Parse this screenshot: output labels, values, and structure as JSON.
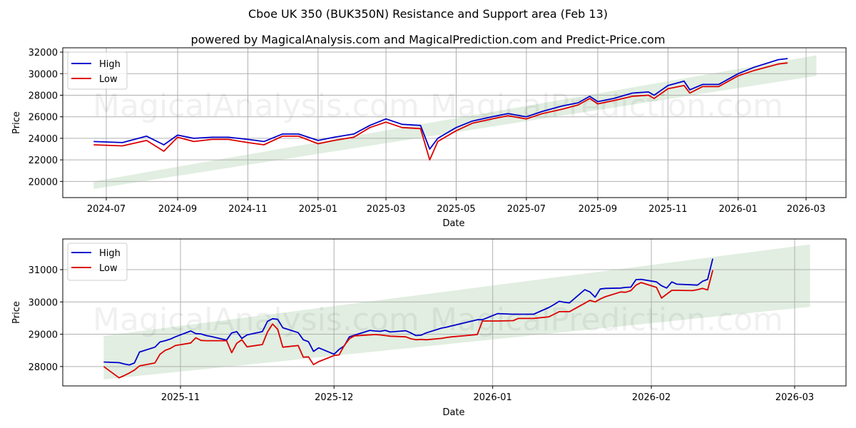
{
  "header": {
    "title": "Cboe UK 350 (BUK350N) Resistance and Support area (Feb 13)",
    "subtitle": "powered by MagicalAnalysis.com and MagicalPrediction.com and Predict-Price.com"
  },
  "watermarks": [
    "MagicalAnalysis.com",
    "MagicalPrediction.com"
  ],
  "colors": {
    "high": "#0000cc",
    "low": "#dd0000",
    "band": "#c8e0c8",
    "grid": "#b0b0b0"
  },
  "chart_data": [
    {
      "type": "line",
      "title": "Cboe UK 350 (BUK350N) Resistance and Support area (Feb 13)",
      "xlabel": "Date",
      "ylabel": "Price",
      "ylim": [
        18500,
        32400
      ],
      "yticks": [
        20000,
        22000,
        24000,
        26000,
        28000,
        30000,
        32000
      ],
      "xticks": [
        "2024-07",
        "2024-09",
        "2024-11",
        "2025-01",
        "2025-03",
        "2025-05",
        "2025-07",
        "2025-09",
        "2025-11",
        "2026-01",
        "2026-03"
      ],
      "grid": true,
      "legend": {
        "position": "upper left",
        "entries": [
          "High",
          "Low"
        ]
      },
      "band": {
        "label": "Resistance and Support area",
        "start": {
          "x": "2024-06-20",
          "low": 19300,
          "high": 20000
        },
        "end": {
          "x": "2026-03-10",
          "low": 29800,
          "high": 31700
        }
      },
      "x": [
        "2024-06-20",
        "2024-07-15",
        "2024-08-05",
        "2024-08-20",
        "2024-09-01",
        "2024-09-15",
        "2024-10-01",
        "2024-10-15",
        "2024-11-01",
        "2024-11-15",
        "2024-12-01",
        "2024-12-15",
        "2025-01-01",
        "2025-01-15",
        "2025-02-01",
        "2025-02-15",
        "2025-03-01",
        "2025-03-15",
        "2025-03-31",
        "2025-04-08",
        "2025-04-15",
        "2025-05-01",
        "2025-05-15",
        "2025-06-01",
        "2025-06-15",
        "2025-07-01",
        "2025-07-15",
        "2025-08-01",
        "2025-08-15",
        "2025-08-25",
        "2025-09-01",
        "2025-09-15",
        "2025-10-01",
        "2025-10-15",
        "2025-10-20",
        "2025-11-01",
        "2025-11-15",
        "2025-11-20",
        "2025-12-01",
        "2025-12-15",
        "2026-01-01",
        "2026-01-15",
        "2026-02-05",
        "2026-02-13"
      ],
      "series": [
        {
          "name": "High",
          "values": [
            23700,
            23600,
            24200,
            23400,
            24300,
            24000,
            24100,
            24100,
            23900,
            23700,
            24400,
            24400,
            23800,
            24100,
            24400,
            25200,
            25800,
            25300,
            25200,
            23000,
            24000,
            25000,
            25600,
            26000,
            26300,
            26000,
            26500,
            27000,
            27300,
            27900,
            27400,
            27700,
            28200,
            28300,
            28000,
            28900,
            29300,
            28500,
            29000,
            29000,
            30000,
            30600,
            31300,
            31400
          ]
        },
        {
          "name": "Low",
          "values": [
            23400,
            23300,
            23800,
            22800,
            24100,
            23700,
            23900,
            23900,
            23600,
            23400,
            24200,
            24200,
            23500,
            23800,
            24100,
            25000,
            25500,
            25000,
            24900,
            22000,
            23700,
            24700,
            25400,
            25800,
            26100,
            25800,
            26300,
            26700,
            27100,
            27700,
            27200,
            27500,
            27900,
            28000,
            27700,
            28600,
            28900,
            28200,
            28800,
            28800,
            29800,
            30300,
            30900,
            31000
          ]
        }
      ]
    },
    {
      "type": "line",
      "title": "",
      "xlabel": "Date",
      "ylabel": "Price",
      "ylim": [
        27400,
        31950
      ],
      "yticks": [
        28000,
        29000,
        30000,
        31000
      ],
      "xticks": [
        "2025-11",
        "2025-12",
        "2026-01",
        "2026-02",
        "2026-03"
      ],
      "grid": true,
      "legend": {
        "position": "upper left",
        "entries": [
          "High",
          "Low"
        ]
      },
      "band": {
        "label": "Resistance and Support area",
        "start": {
          "x": "2025-10-17",
          "low": 27600,
          "high": 28950
        },
        "end": {
          "x": "2026-03-04",
          "low": 29850,
          "high": 31780
        }
      },
      "x": [
        "2025-10-17",
        "2025-10-20",
        "2025-10-21",
        "2025-10-22",
        "2025-10-23",
        "2025-10-24",
        "2025-10-27",
        "2025-10-28",
        "2025-10-29",
        "2025-10-30",
        "2025-10-31",
        "2025-11-03",
        "2025-11-04",
        "2025-11-05",
        "2025-11-06",
        "2025-11-07",
        "2025-11-10",
        "2025-11-11",
        "2025-11-12",
        "2025-11-13",
        "2025-11-14",
        "2025-11-17",
        "2025-11-18",
        "2025-11-19",
        "2025-11-20",
        "2025-11-21",
        "2025-11-24",
        "2025-11-25",
        "2025-11-26",
        "2025-11-27",
        "2025-11-28",
        "2025-12-01",
        "2025-12-02",
        "2025-12-03",
        "2025-12-04",
        "2025-12-05",
        "2025-12-08",
        "2025-12-09",
        "2025-12-10",
        "2025-12-11",
        "2025-12-12",
        "2025-12-15",
        "2025-12-16",
        "2025-12-17",
        "2025-12-18",
        "2025-12-19",
        "2025-12-22",
        "2025-12-23",
        "2025-12-24",
        "2025-12-29",
        "2025-12-30",
        "2026-01-02",
        "2026-01-05",
        "2026-01-06",
        "2026-01-07",
        "2026-01-08",
        "2026-01-09",
        "2026-01-12",
        "2026-01-13",
        "2026-01-14",
        "2026-01-15",
        "2026-01-16",
        "2026-01-19",
        "2026-01-20",
        "2026-01-21",
        "2026-01-22",
        "2026-01-23",
        "2026-01-26",
        "2026-01-27",
        "2026-01-28",
        "2026-01-29",
        "2026-01-30",
        "2026-02-02",
        "2026-02-03",
        "2026-02-04",
        "2026-02-05",
        "2026-02-06",
        "2026-02-09",
        "2026-02-10",
        "2026-02-11",
        "2026-02-12",
        "2026-02-13"
      ],
      "series": [
        {
          "name": "High",
          "values": [
            28140,
            28120,
            28080,
            28050,
            28110,
            28450,
            28600,
            28760,
            28800,
            28850,
            28920,
            29100,
            29020,
            29010,
            28960,
            28930,
            28820,
            29040,
            29080,
            28870,
            28980,
            29080,
            29400,
            29480,
            29460,
            29200,
            29050,
            28830,
            28770,
            28470,
            28580,
            28380,
            28530,
            28640,
            28920,
            28970,
            29120,
            29100,
            29090,
            29120,
            29070,
            29110,
            29040,
            28960,
            28970,
            29040,
            29190,
            29220,
            29260,
            29450,
            29450,
            29640,
            29620,
            29620,
            29620,
            29620,
            29620,
            29830,
            29920,
            30020,
            29990,
            29970,
            30380,
            30310,
            30150,
            30400,
            30420,
            30430,
            30450,
            30460,
            30690,
            30700,
            30620,
            30500,
            30430,
            30620,
            30550,
            30530,
            30520,
            30640,
            30700,
            31340
          ]
        },
        {
          "name": "Low",
          "values": [
            28000,
            27650,
            27720,
            27800,
            27890,
            28020,
            28110,
            28380,
            28500,
            28560,
            28650,
            28730,
            28890,
            28810,
            28800,
            28800,
            28800,
            28430,
            28720,
            28830,
            28610,
            28680,
            29070,
            29320,
            29150,
            28600,
            28650,
            28290,
            28300,
            28060,
            28150,
            28340,
            28360,
            28650,
            28860,
            28950,
            28980,
            28990,
            28980,
            28960,
            28940,
            28920,
            28860,
            28830,
            28840,
            28830,
            28870,
            28900,
            28920,
            28990,
            29410,
            29410,
            29420,
            29490,
            29490,
            29490,
            29490,
            29540,
            29620,
            29700,
            29700,
            29700,
            29960,
            30050,
            30000,
            30090,
            30160,
            30310,
            30300,
            30350,
            30520,
            30600,
            30450,
            30120,
            30240,
            30360,
            30360,
            30350,
            30380,
            30420,
            30370,
            30980
          ]
        }
      ]
    }
  ]
}
